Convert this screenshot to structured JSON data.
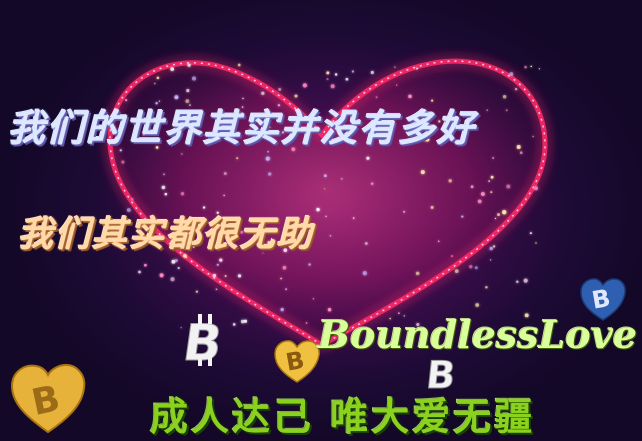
{
  "lines": {
    "line1": "我们的世界其实并没有多好",
    "line2": "我们其实都很无助",
    "line3": "BoundlessLove",
    "line4": "成人达己 唯大爱无疆"
  },
  "colors": {
    "line1": "#dde8ff",
    "line2": "#ffd9a8",
    "line3": "#d9ff9a",
    "line4": "#8bd21e",
    "heart_glow": "#ff2a6a",
    "coin_gold": "#e6b23a",
    "coin_blue": "#2f5fb0",
    "coin_white": "#f2f2f2"
  },
  "icons": [
    "heart-of-lights",
    "bitcoin-icon-white",
    "bitcoin-heart-gold-icon",
    "bitcoin-heart-gold-small-icon",
    "bitcoin-icon-white-small",
    "bitcoin-heart-blue-icon"
  ]
}
